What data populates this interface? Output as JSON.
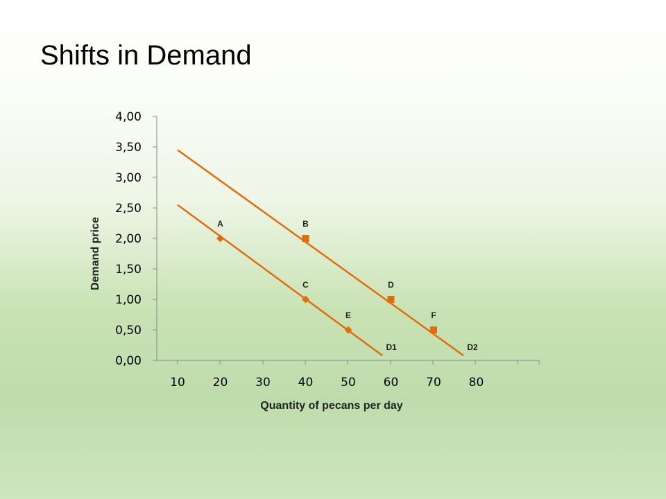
{
  "slide": {
    "title": "Shifts in Demand"
  },
  "colors": {
    "series": "#e36c0a",
    "axis": "#888888"
  },
  "chart_data": {
    "type": "scatter",
    "xlabel": "Quantity of pecans per day",
    "ylabel": "Demand price",
    "x_ticks": [
      10,
      20,
      30,
      40,
      50,
      60,
      70,
      80
    ],
    "y_ticks": [
      "0,00",
      "0,50",
      "1,00",
      "1,50",
      "2,00",
      "2,50",
      "3,00",
      "3,50",
      "4,00"
    ],
    "xlim": [
      10,
      85
    ],
    "ylim": [
      0,
      4
    ],
    "series": [
      {
        "name": "D1",
        "marker": "diamond",
        "points": [
          {
            "label": "A",
            "x": 20,
            "y": 2.0
          },
          {
            "label": "C",
            "x": 40,
            "y": 1.0
          },
          {
            "label": "E",
            "x": 50,
            "y": 0.5
          }
        ],
        "trendline": [
          [
            10,
            2.55
          ],
          [
            58,
            0.08
          ]
        ]
      },
      {
        "name": "D2",
        "marker": "square",
        "points": [
          {
            "label": "B",
            "x": 40,
            "y": 2.0
          },
          {
            "label": "D",
            "x": 60,
            "y": 1.0
          },
          {
            "label": "F",
            "x": 70,
            "y": 0.5
          }
        ],
        "trendline": [
          [
            10,
            3.45
          ],
          [
            77,
            0.08
          ]
        ]
      }
    ]
  }
}
